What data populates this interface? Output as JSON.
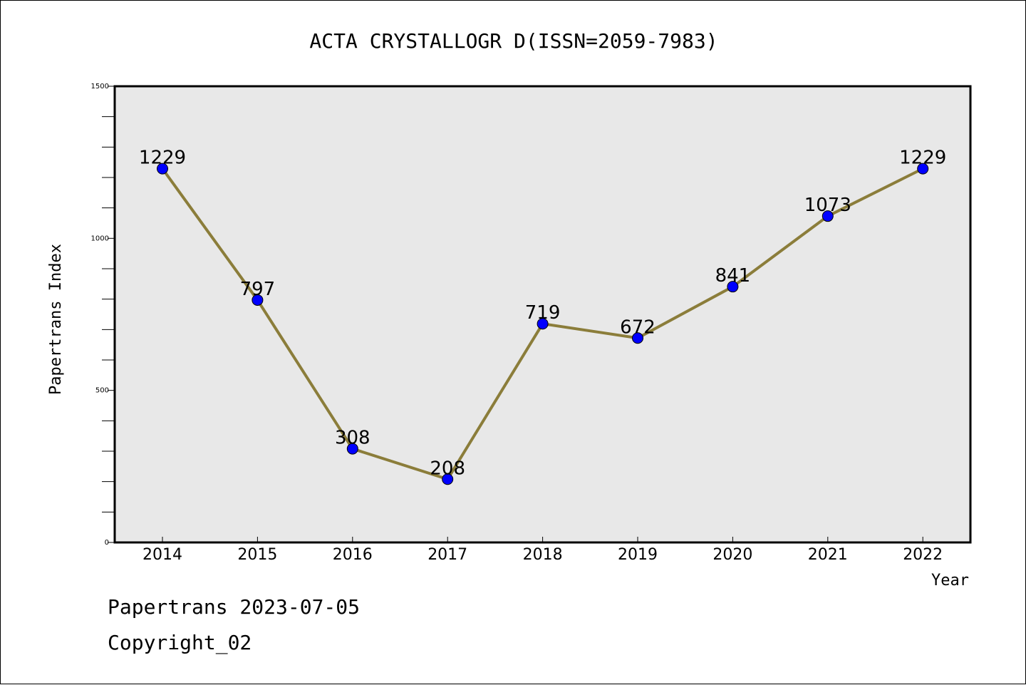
{
  "chart_data": {
    "type": "line",
    "title": "ACTA CRYSTALLOGR D(ISSN=2059-7983)",
    "xlabel": "Year",
    "ylabel": "Papertrans Index",
    "x": [
      "2014",
      "2015",
      "2016",
      "2017",
      "2018",
      "2019",
      "2020",
      "2021",
      "2022"
    ],
    "values": [
      1229,
      797,
      308,
      208,
      719,
      672,
      841,
      1073,
      1229
    ],
    "ylim": [
      0,
      1500
    ],
    "yticks": [
      "0",
      "500",
      "1000",
      "1500"
    ],
    "grid": false,
    "line_color": "#8B7D3A",
    "marker_color": "#0000FF",
    "plot_background": "#E8E8E8"
  },
  "footer": {
    "date_line": "Papertrans 2023-07-05",
    "copyright": "Copyright_02"
  }
}
